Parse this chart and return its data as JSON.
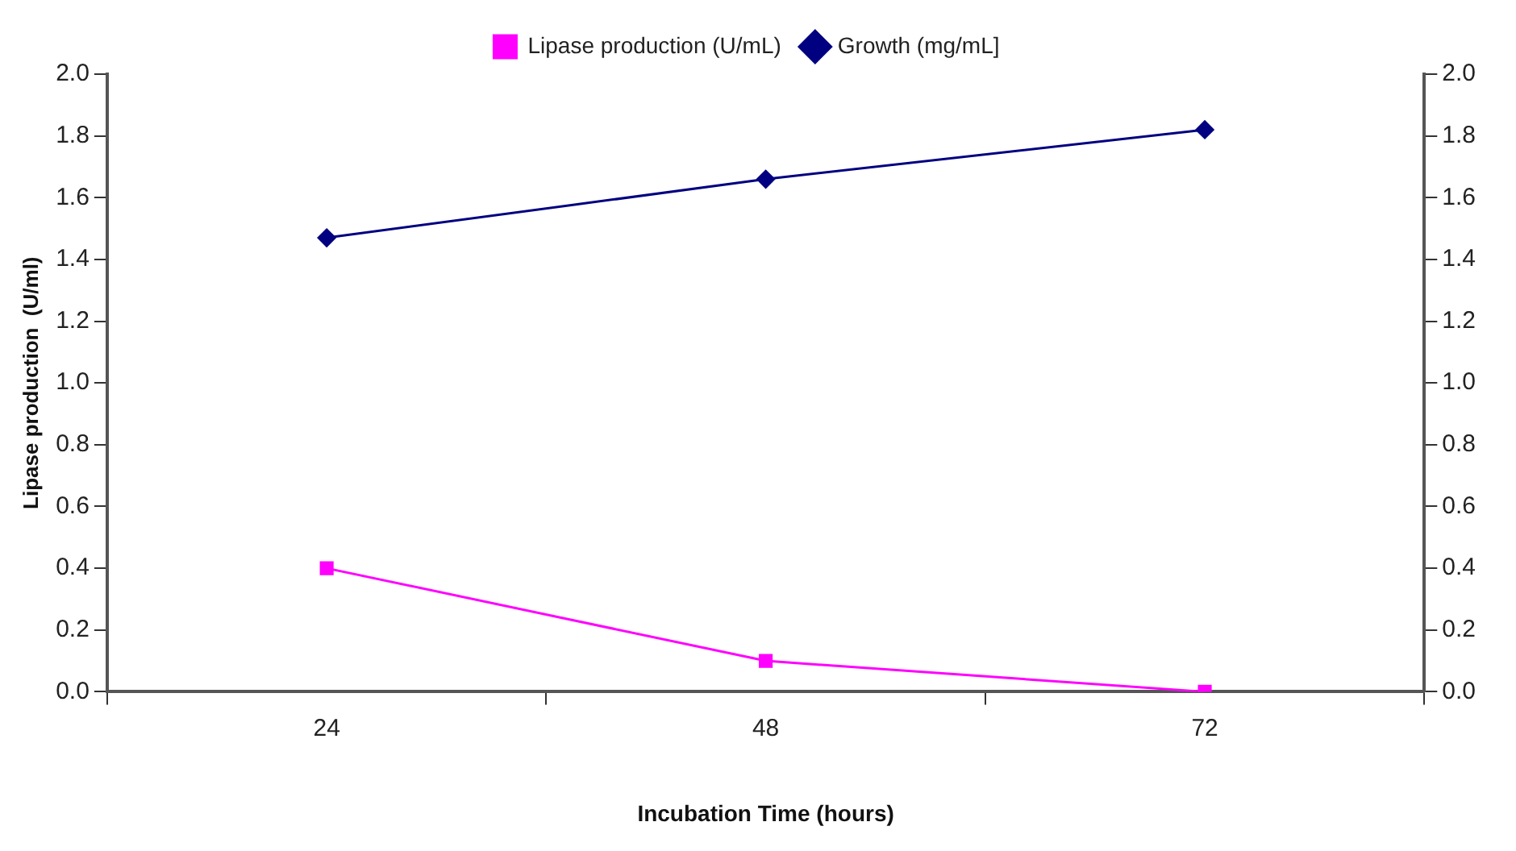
{
  "chart_data": {
    "type": "line",
    "xlabel": "Incubation Time (hours)",
    "ylabel": "Lipase production  (U/ml)",
    "categories": [
      "24",
      "48",
      "72"
    ],
    "series": [
      {
        "name": "Lipase production (U/mL)",
        "color": "#ff00ff",
        "marker": "square",
        "values": [
          0.4,
          0.1,
          0.0
        ]
      },
      {
        "name": "Growth (mg/mL]",
        "color": "#000080",
        "marker": "diamond",
        "values": [
          1.47,
          1.66,
          1.82
        ]
      }
    ],
    "ylim": [
      0,
      2.0
    ],
    "yticks": [
      {
        "value": 0,
        "label": "0.0"
      },
      {
        "value": 0.2,
        "label": "0.2"
      },
      {
        "value": 0.4,
        "label": "0.4"
      },
      {
        "value": 0.6,
        "label": "0.6"
      },
      {
        "value": 0.8,
        "label": "0.8"
      },
      {
        "value": 1.0,
        "label": "1.0"
      },
      {
        "value": 1.2,
        "label": "1.2"
      },
      {
        "value": 1.4,
        "label": "1.4"
      },
      {
        "value": 1.6,
        "label": "1.6"
      },
      {
        "value": 1.8,
        "label": "1.8"
      },
      {
        "value": 2.0,
        "label": "2.0"
      }
    ],
    "y2lim": [
      0,
      2.0
    ],
    "y2ticks": [
      {
        "value": 0,
        "label": "0.0"
      },
      {
        "value": 0.2,
        "label": "0.2"
      },
      {
        "value": 0.4,
        "label": "0.4"
      },
      {
        "value": 0.6,
        "label": "0.6"
      },
      {
        "value": 0.8,
        "label": "0.8"
      },
      {
        "value": 1.0,
        "label": "1.0"
      },
      {
        "value": 1.2,
        "label": "1.2"
      },
      {
        "value": 1.4,
        "label": "1.4"
      },
      {
        "value": 1.6,
        "label": "1.6"
      },
      {
        "value": 1.8,
        "label": "1.8"
      },
      {
        "value": 2.0,
        "label": "2.0"
      }
    ],
    "grid": false,
    "legend": "top",
    "line_style": "solid"
  }
}
